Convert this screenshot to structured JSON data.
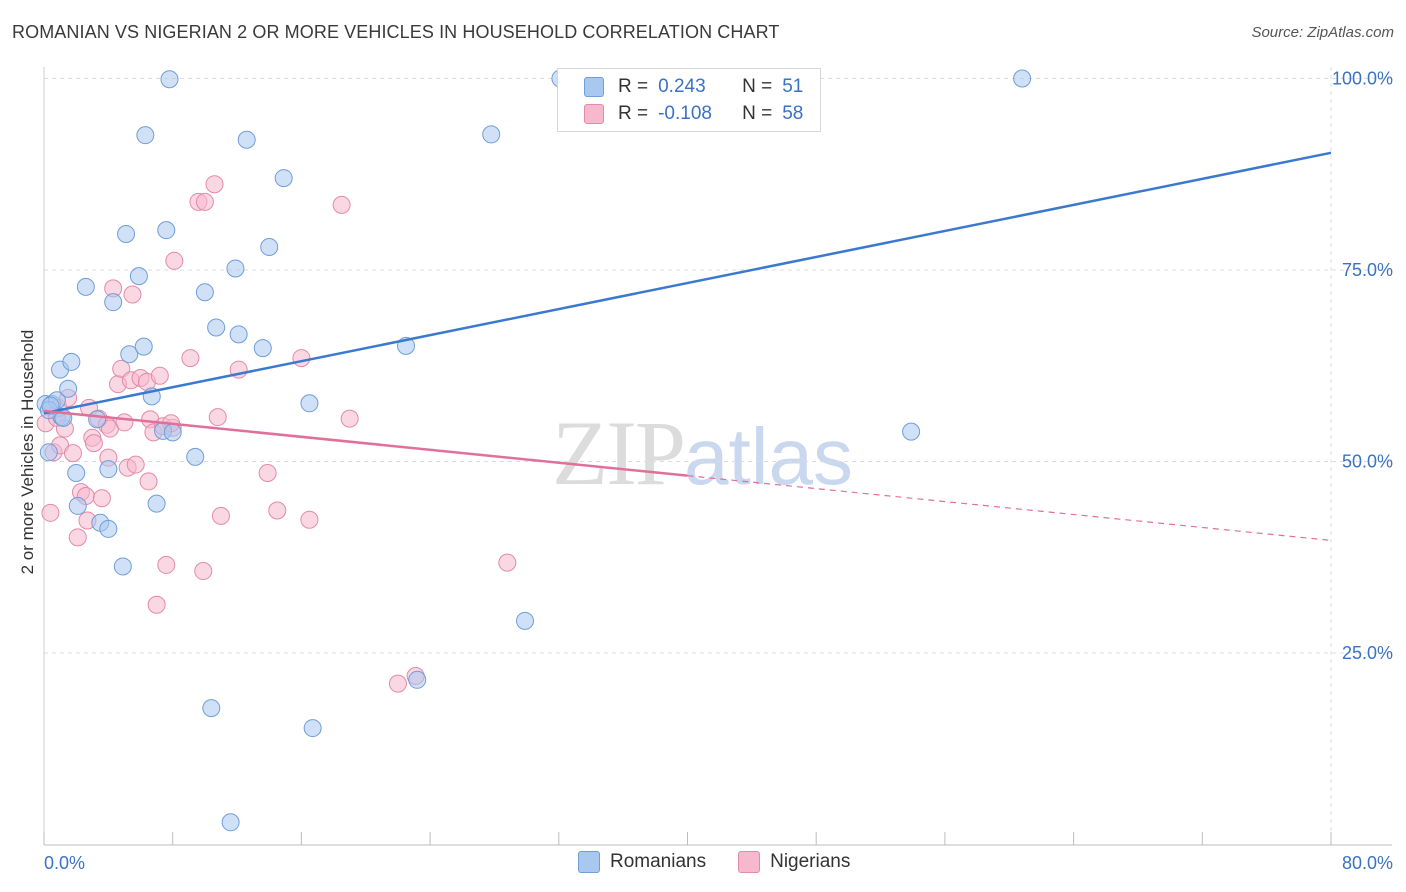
{
  "header": {
    "title": "ROMANIAN VS NIGERIAN 2 OR MORE VEHICLES IN HOUSEHOLD CORRELATION CHART",
    "source": "Source: ZipAtlas.com"
  },
  "watermark": {
    "zip": "ZIP",
    "atlas": "atlas"
  },
  "legend_box": {
    "rows": [
      {
        "r_label": "R =",
        "r_value": "0.243",
        "n_label": "N =",
        "n_value": "51",
        "color": "#a9c8f0"
      },
      {
        "r_label": "R =",
        "r_value": "-0.108",
        "n_label": "N =",
        "n_value": "58",
        "color": "#f5b8cc"
      }
    ]
  },
  "colors": {
    "romanian_fill": "#a9c8f0",
    "romanian_stroke": "#6f9ed8",
    "romanian_line": "#3b79d1",
    "nigerian_fill": "#f5b8cc",
    "nigerian_stroke": "#e48aa8",
    "nigerian_line": "#e07099",
    "grid": "#dcdcdc",
    "axis_label": "#3a72c4"
  },
  "chart_data": {
    "type": "scatter",
    "title": "ROMANIAN VS NIGERIAN 2 OR MORE VEHICLES IN HOUSEHOLD CORRELATION CHART",
    "xlabel": "",
    "ylabel": "2 or more Vehicles in Household",
    "xlim": [
      0,
      80
    ],
    "ylim": [
      0,
      104
    ],
    "x_ticks": [
      "0.0%",
      "80.0%"
    ],
    "y_ticks": [
      {
        "value": 25,
        "label": "25.0%"
      },
      {
        "value": 50,
        "label": "50.0%"
      },
      {
        "value": 75,
        "label": "75.0%"
      },
      {
        "value": 100,
        "label": "100.0%"
      }
    ],
    "grid": true,
    "legend_position": "bottom-center",
    "series": [
      {
        "name": "Romanians",
        "R": 0.243,
        "N": 51,
        "trend": {
          "x": [
            0,
            80
          ],
          "y": [
            56.3,
            90.3
          ],
          "dashed_from": null
        },
        "points": [
          [
            0.1,
            57.5
          ],
          [
            0.3,
            51.2
          ],
          [
            0.5,
            57.5
          ],
          [
            0.8,
            58.0
          ],
          [
            1.0,
            62.0
          ],
          [
            1.1,
            55.8
          ],
          [
            1.2,
            55.7
          ],
          [
            1.5,
            59.5
          ],
          [
            1.7,
            63.0
          ],
          [
            2.0,
            48.5
          ],
          [
            2.1,
            44.2
          ],
          [
            2.6,
            72.8
          ],
          [
            3.3,
            55.5
          ],
          [
            3.5,
            42.0
          ],
          [
            4.0,
            41.2
          ],
          [
            4.0,
            49.0
          ],
          [
            4.3,
            70.8
          ],
          [
            4.9,
            36.3
          ],
          [
            5.1,
            79.7
          ],
          [
            5.3,
            64.0
          ],
          [
            5.9,
            74.2
          ],
          [
            6.2,
            65.0
          ],
          [
            6.3,
            92.6
          ],
          [
            6.7,
            58.5
          ],
          [
            7.0,
            44.5
          ],
          [
            7.4,
            54.0
          ],
          [
            7.6,
            80.2
          ],
          [
            7.8,
            99.9
          ],
          [
            8.0,
            53.8
          ],
          [
            9.4,
            50.6
          ],
          [
            10.0,
            72.1
          ],
          [
            10.4,
            17.8
          ],
          [
            10.7,
            67.5
          ],
          [
            11.6,
            2.9
          ],
          [
            11.9,
            75.2
          ],
          [
            12.1,
            66.6
          ],
          [
            12.6,
            92.0
          ],
          [
            13.6,
            64.8
          ],
          [
            14.0,
            78.0
          ],
          [
            14.9,
            87.0
          ],
          [
            16.5,
            57.6
          ],
          [
            16.7,
            15.2
          ],
          [
            22.5,
            65.1
          ],
          [
            23.2,
            21.5
          ],
          [
            27.8,
            92.7
          ],
          [
            29.9,
            29.2
          ],
          [
            32.1,
            100.0
          ],
          [
            53.9,
            53.9
          ],
          [
            60.8,
            100.0
          ],
          [
            0.3,
            56.7
          ],
          [
            0.4,
            57.3
          ]
        ]
      },
      {
        "name": "Nigerians",
        "R": -0.108,
        "N": 58,
        "trend": {
          "x": [
            0,
            80
          ],
          "y": [
            56.6,
            39.7
          ],
          "dashed_from": 40
        },
        "points": [
          [
            0.1,
            55.0
          ],
          [
            0.4,
            43.3
          ],
          [
            0.6,
            51.2
          ],
          [
            0.8,
            55.7
          ],
          [
            0.9,
            57.0
          ],
          [
            1.0,
            52.1
          ],
          [
            1.3,
            54.3
          ],
          [
            1.5,
            58.3
          ],
          [
            1.8,
            51.1
          ],
          [
            2.1,
            40.1
          ],
          [
            2.3,
            46.0
          ],
          [
            2.6,
            45.5
          ],
          [
            2.8,
            57.0
          ],
          [
            3.0,
            53.1
          ],
          [
            3.1,
            52.4
          ],
          [
            3.4,
            55.6
          ],
          [
            3.6,
            45.2
          ],
          [
            3.9,
            54.8
          ],
          [
            4.1,
            54.3
          ],
          [
            4.3,
            72.6
          ],
          [
            4.6,
            60.1
          ],
          [
            4.8,
            62.1
          ],
          [
            5.0,
            55.1
          ],
          [
            5.2,
            49.2
          ],
          [
            5.4,
            60.6
          ],
          [
            5.5,
            71.8
          ],
          [
            5.7,
            49.6
          ],
          [
            6.0,
            60.9
          ],
          [
            6.4,
            60.4
          ],
          [
            6.5,
            47.4
          ],
          [
            6.6,
            55.5
          ],
          [
            6.8,
            53.8
          ],
          [
            7.0,
            31.3
          ],
          [
            7.2,
            61.2
          ],
          [
            7.4,
            54.6
          ],
          [
            7.6,
            36.5
          ],
          [
            8.0,
            54.4
          ],
          [
            8.1,
            76.2
          ],
          [
            9.1,
            63.5
          ],
          [
            9.6,
            83.9
          ],
          [
            9.9,
            35.7
          ],
          [
            10.0,
            83.9
          ],
          [
            10.6,
            86.2
          ],
          [
            10.8,
            55.8
          ],
          [
            11.0,
            42.9
          ],
          [
            12.1,
            62.0
          ],
          [
            13.9,
            48.5
          ],
          [
            14.5,
            43.6
          ],
          [
            16.0,
            63.5
          ],
          [
            16.5,
            42.4
          ],
          [
            18.5,
            83.5
          ],
          [
            19.0,
            55.6
          ],
          [
            22.0,
            21.0
          ],
          [
            23.1,
            22.0
          ],
          [
            28.8,
            36.8
          ],
          [
            4.0,
            50.5
          ],
          [
            2.7,
            42.3
          ],
          [
            7.9,
            55.0
          ]
        ]
      }
    ]
  },
  "bottom_legend": {
    "items": [
      {
        "label": "Romanians",
        "color": "#a9c8f0"
      },
      {
        "label": "Nigerians",
        "color": "#f5b8cc"
      }
    ]
  }
}
